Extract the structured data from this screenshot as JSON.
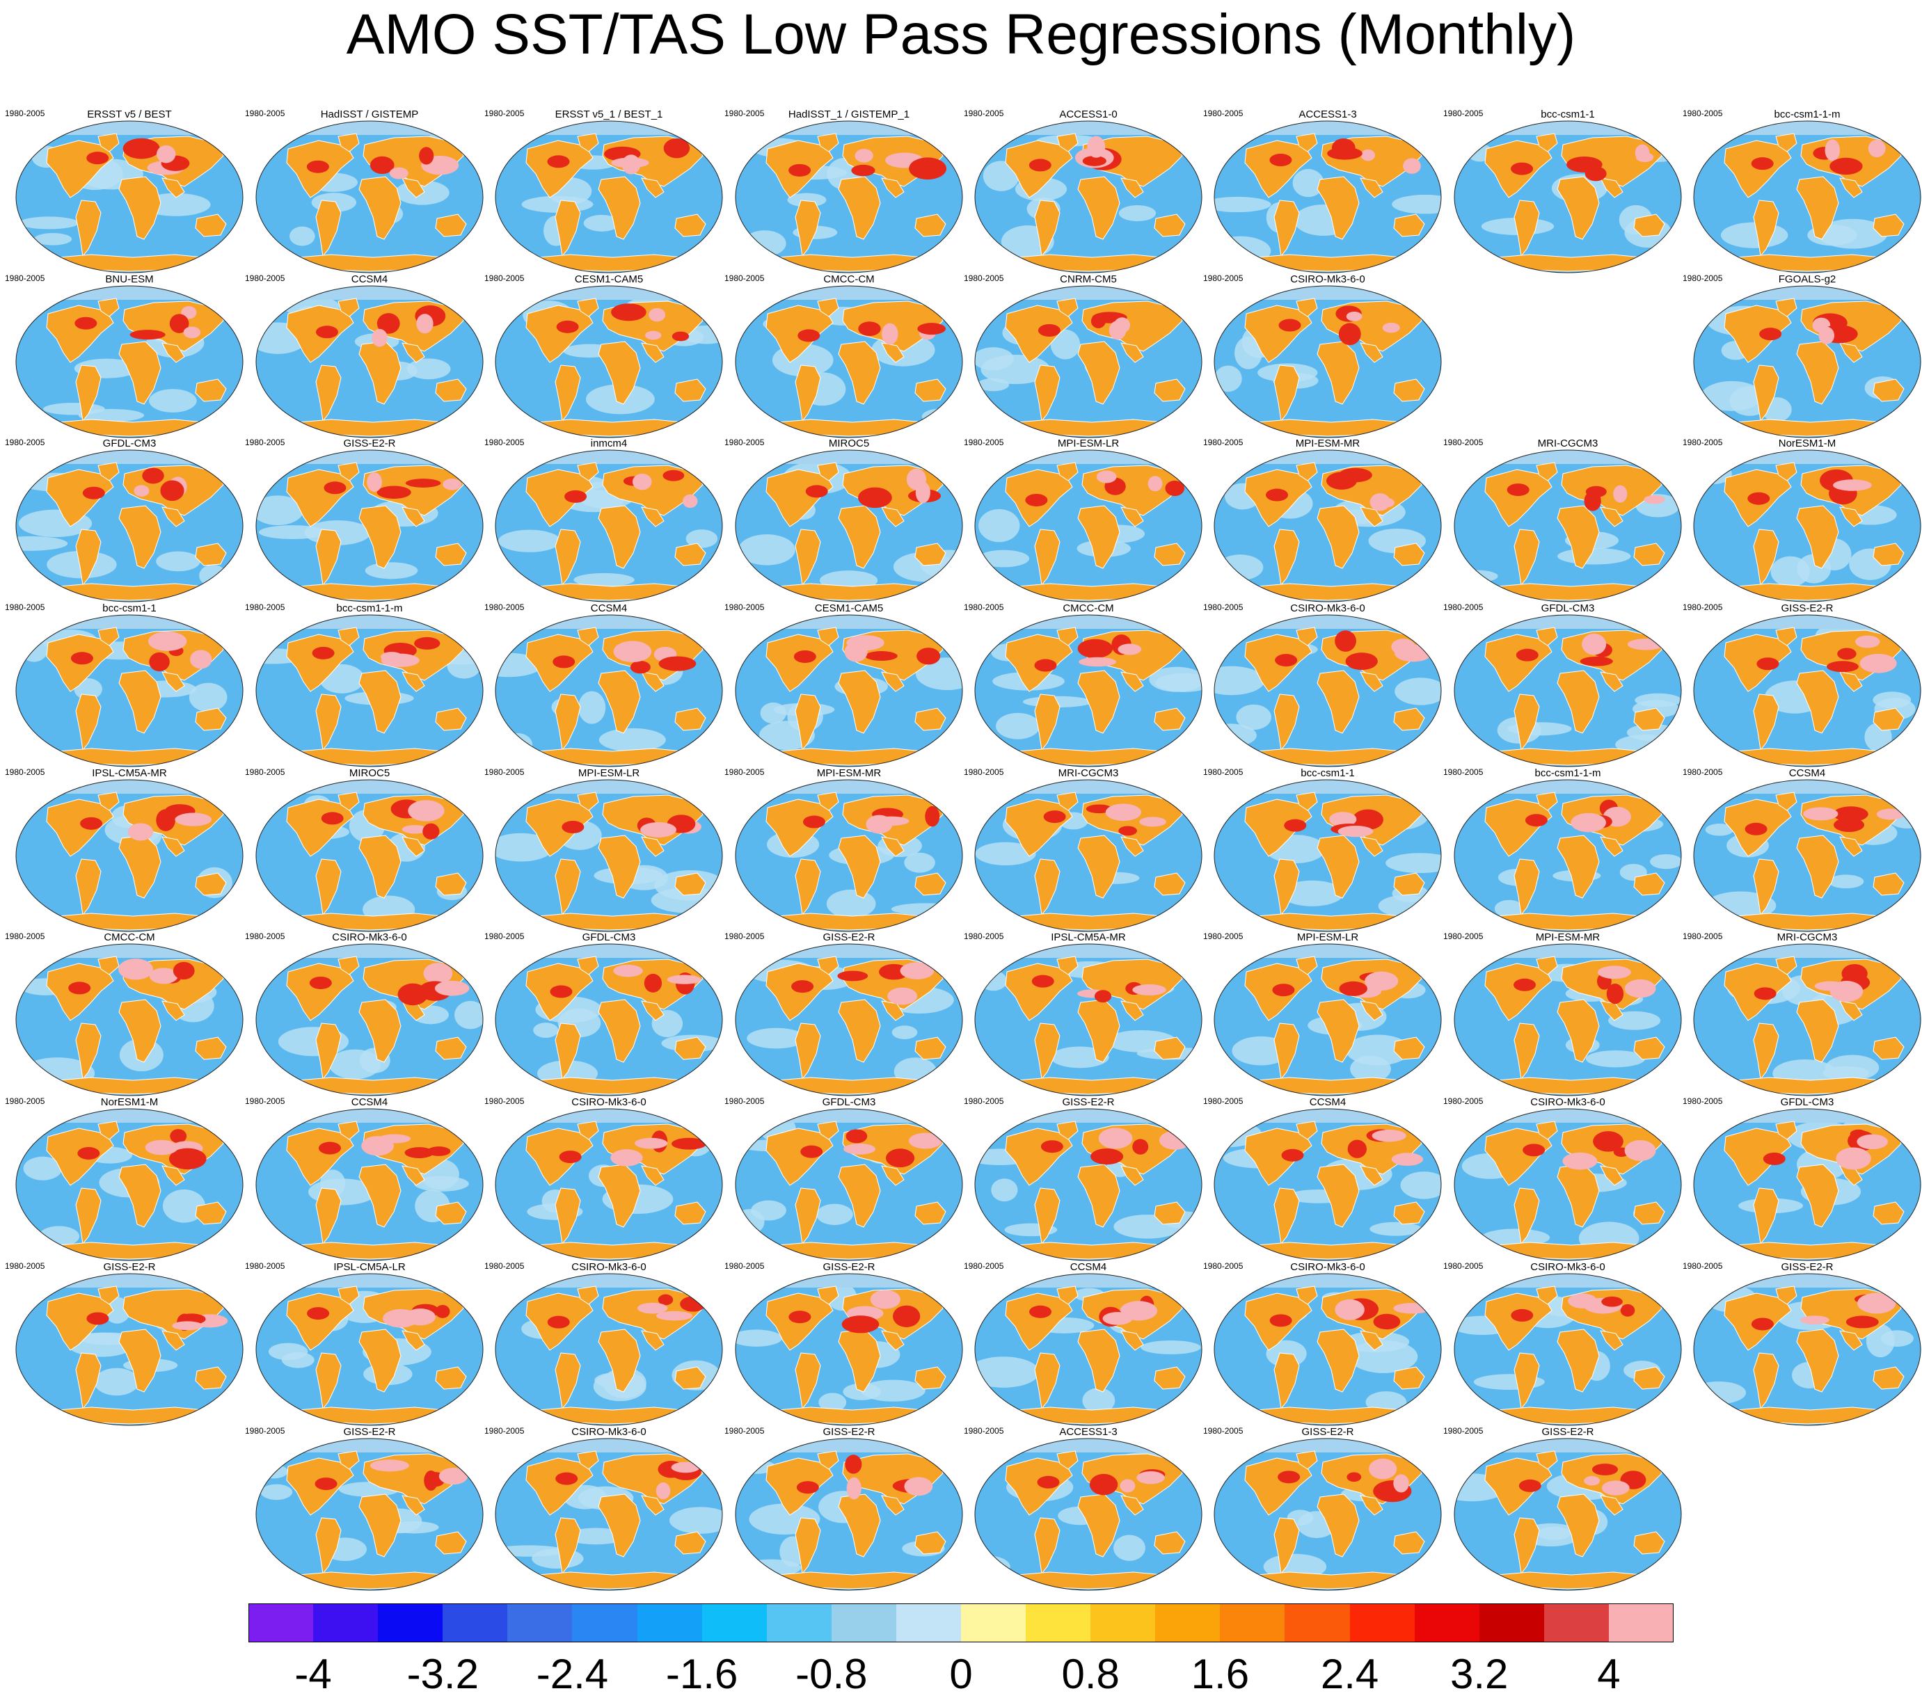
{
  "title": "AMO SST/TAS Low Pass Regressions (Monthly)",
  "colors": {
    "ocean_base": "#5bb8ee",
    "ocean_light": "#b6dff5",
    "land_base": "#f6a224",
    "land_hot": "#e62818",
    "land_very_hot": "#f7b3b8",
    "polar_cap": "#a6d3f0",
    "coast": "#ffffff",
    "outline": "#222222"
  },
  "chart_data": {
    "type": "heatmap",
    "description_type": "panel grid of global regression maps",
    "panels": [
      {
        "row": 0,
        "col": 0,
        "title": "ERSST v5 / BEST",
        "period": "1980-2005"
      },
      {
        "row": 0,
        "col": 1,
        "title": "HadISST / GISTEMP",
        "period": "1980-2005"
      },
      {
        "row": 0,
        "col": 2,
        "title": "ERSST v5_1 / BEST_1",
        "period": "1980-2005"
      },
      {
        "row": 0,
        "col": 3,
        "title": "HadISST_1 / GISTEMP_1",
        "period": "1980-2005"
      },
      {
        "row": 0,
        "col": 4,
        "title": "ACCESS1-0",
        "period": "1980-2005"
      },
      {
        "row": 0,
        "col": 5,
        "title": "ACCESS1-3",
        "period": "1980-2005"
      },
      {
        "row": 0,
        "col": 6,
        "title": "bcc-csm1-1",
        "period": "1980-2005"
      },
      {
        "row": 0,
        "col": 7,
        "title": "bcc-csm1-1-m",
        "period": "1980-2005"
      },
      {
        "row": 1,
        "col": 0,
        "title": "BNU-ESM",
        "period": "1980-2005"
      },
      {
        "row": 1,
        "col": 1,
        "title": "CCSM4",
        "period": "1980-2005"
      },
      {
        "row": 1,
        "col": 2,
        "title": "CESM1-CAM5",
        "period": "1980-2005"
      },
      {
        "row": 1,
        "col": 3,
        "title": "CMCC-CM",
        "period": "1980-2005"
      },
      {
        "row": 1,
        "col": 4,
        "title": "CNRM-CM5",
        "period": "1980-2005"
      },
      {
        "row": 1,
        "col": 5,
        "title": "CSIRO-Mk3-6-0",
        "period": "1980-2005"
      },
      {
        "row": 1,
        "col": 7,
        "title": "FGOALS-g2",
        "period": "1980-2005"
      },
      {
        "row": 2,
        "col": 0,
        "title": "GFDL-CM3",
        "period": "1980-2005"
      },
      {
        "row": 2,
        "col": 1,
        "title": "GISS-E2-R",
        "period": "1980-2005"
      },
      {
        "row": 2,
        "col": 2,
        "title": "inmcm4",
        "period": "1980-2005"
      },
      {
        "row": 2,
        "col": 3,
        "title": "MIROC5",
        "period": "1980-2005"
      },
      {
        "row": 2,
        "col": 4,
        "title": "MPI-ESM-LR",
        "period": "1980-2005"
      },
      {
        "row": 2,
        "col": 5,
        "title": "MPI-ESM-MR",
        "period": "1980-2005"
      },
      {
        "row": 2,
        "col": 6,
        "title": "MRI-CGCM3",
        "period": "1980-2005"
      },
      {
        "row": 2,
        "col": 7,
        "title": "NorESM1-M",
        "period": "1980-2005"
      },
      {
        "row": 3,
        "col": 0,
        "title": "bcc-csm1-1",
        "period": "1980-2005"
      },
      {
        "row": 3,
        "col": 1,
        "title": "bcc-csm1-1-m",
        "period": "1980-2005"
      },
      {
        "row": 3,
        "col": 2,
        "title": "CCSM4",
        "period": "1980-2005"
      },
      {
        "row": 3,
        "col": 3,
        "title": "CESM1-CAM5",
        "period": "1980-2005"
      },
      {
        "row": 3,
        "col": 4,
        "title": "CMCC-CM",
        "period": "1980-2005"
      },
      {
        "row": 3,
        "col": 5,
        "title": "CSIRO-Mk3-6-0",
        "period": "1980-2005"
      },
      {
        "row": 3,
        "col": 6,
        "title": "GFDL-CM3",
        "period": "1980-2005"
      },
      {
        "row": 3,
        "col": 7,
        "title": "GISS-E2-R",
        "period": "1980-2005"
      },
      {
        "row": 4,
        "col": 0,
        "title": "IPSL-CM5A-MR",
        "period": "1980-2005"
      },
      {
        "row": 4,
        "col": 1,
        "title": "MIROC5",
        "period": "1980-2005"
      },
      {
        "row": 4,
        "col": 2,
        "title": "MPI-ESM-LR",
        "period": "1980-2005"
      },
      {
        "row": 4,
        "col": 3,
        "title": "MPI-ESM-MR",
        "period": "1980-2005"
      },
      {
        "row": 4,
        "col": 4,
        "title": "MRI-CGCM3",
        "period": "1980-2005"
      },
      {
        "row": 4,
        "col": 5,
        "title": "bcc-csm1-1",
        "period": "1980-2005"
      },
      {
        "row": 4,
        "col": 6,
        "title": "bcc-csm1-1-m",
        "period": "1980-2005"
      },
      {
        "row": 4,
        "col": 7,
        "title": "CCSM4",
        "period": "1980-2005"
      },
      {
        "row": 5,
        "col": 0,
        "title": "CMCC-CM",
        "period": "1980-2005"
      },
      {
        "row": 5,
        "col": 1,
        "title": "CSIRO-Mk3-6-0",
        "period": "1980-2005"
      },
      {
        "row": 5,
        "col": 2,
        "title": "GFDL-CM3",
        "period": "1980-2005"
      },
      {
        "row": 5,
        "col": 3,
        "title": "GISS-E2-R",
        "period": "1980-2005"
      },
      {
        "row": 5,
        "col": 4,
        "title": "IPSL-CM5A-MR",
        "period": "1980-2005"
      },
      {
        "row": 5,
        "col": 5,
        "title": "MPI-ESM-LR",
        "period": "1980-2005"
      },
      {
        "row": 5,
        "col": 6,
        "title": "MPI-ESM-MR",
        "period": "1980-2005"
      },
      {
        "row": 5,
        "col": 7,
        "title": "MRI-CGCM3",
        "period": "1980-2005"
      },
      {
        "row": 6,
        "col": 0,
        "title": "NorESM1-M",
        "period": "1980-2005"
      },
      {
        "row": 6,
        "col": 1,
        "title": "CCSM4",
        "period": "1980-2005"
      },
      {
        "row": 6,
        "col": 2,
        "title": "CSIRO-Mk3-6-0",
        "period": "1980-2005"
      },
      {
        "row": 6,
        "col": 3,
        "title": "GFDL-CM3",
        "period": "1980-2005"
      },
      {
        "row": 6,
        "col": 4,
        "title": "GISS-E2-R",
        "period": "1980-2005"
      },
      {
        "row": 6,
        "col": 5,
        "title": "CCSM4",
        "period": "1980-2005"
      },
      {
        "row": 6,
        "col": 6,
        "title": "CSIRO-Mk3-6-0",
        "period": "1980-2005"
      },
      {
        "row": 6,
        "col": 7,
        "title": "GFDL-CM3",
        "period": "1980-2005"
      },
      {
        "row": 7,
        "col": 0,
        "title": "GISS-E2-R",
        "period": "1980-2005"
      },
      {
        "row": 7,
        "col": 1,
        "title": "IPSL-CM5A-LR",
        "period": "1980-2005"
      },
      {
        "row": 7,
        "col": 2,
        "title": "CSIRO-Mk3-6-0",
        "period": "1980-2005"
      },
      {
        "row": 7,
        "col": 3,
        "title": "GISS-E2-R",
        "period": "1980-2005"
      },
      {
        "row": 7,
        "col": 4,
        "title": "CCSM4",
        "period": "1980-2005"
      },
      {
        "row": 7,
        "col": 5,
        "title": "CSIRO-Mk3-6-0",
        "period": "1980-2005"
      },
      {
        "row": 7,
        "col": 6,
        "title": "CSIRO-Mk3-6-0",
        "period": "1980-2005"
      },
      {
        "row": 7,
        "col": 7,
        "title": "GISS-E2-R",
        "period": "1980-2005"
      },
      {
        "row": 8,
        "col": 1,
        "title": "GISS-E2-R",
        "period": "1980-2005"
      },
      {
        "row": 8,
        "col": 2,
        "title": "CSIRO-Mk3-6-0",
        "period": "1980-2005"
      },
      {
        "row": 8,
        "col": 3,
        "title": "GISS-E2-R",
        "period": "1980-2005"
      },
      {
        "row": 8,
        "col": 4,
        "title": "ACCESS1-3",
        "period": "1980-2005"
      },
      {
        "row": 8,
        "col": 5,
        "title": "GISS-E2-R",
        "period": "1980-2005"
      },
      {
        "row": 8,
        "col": 6,
        "title": "GISS-E2-R",
        "period": "1980-2005"
      }
    ],
    "colorbar": {
      "colors": [
        "#7d1ef0",
        "#3c10f0",
        "#0a0af5",
        "#2b4be6",
        "#3a6ee6",
        "#2a86f2",
        "#12a0f8",
        "#0fbef8",
        "#56c5f3",
        "#98cfea",
        "#c2e4f6",
        "#fff7a0",
        "#fde33c",
        "#fbc31b",
        "#faa40a",
        "#fb850a",
        "#fb5a0a",
        "#fc2805",
        "#ea0606",
        "#c80000",
        "#dc4040",
        "#f9b0b5"
      ],
      "tick_values": [
        -4,
        -3.2,
        -2.4,
        -1.6,
        -0.8,
        0,
        0.8,
        1.6,
        2.4,
        3.2,
        4
      ],
      "tick_labels": [
        "-4",
        "-3.2",
        "-2.4",
        "-1.6",
        "-0.8",
        "0",
        "0.8",
        "1.6",
        "2.4",
        "3.2",
        "4"
      ],
      "range": [
        -4.4,
        4.4
      ]
    }
  }
}
